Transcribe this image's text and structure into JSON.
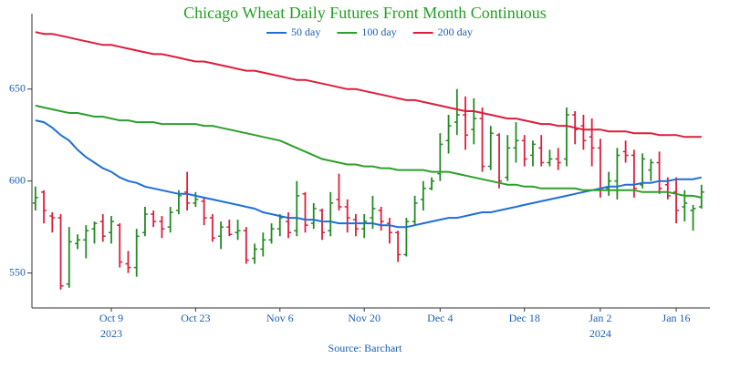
{
  "chart_data": {
    "type": "ohlc",
    "title": "Chicago Wheat Daily Futures Front Month Continuous",
    "title_color": "#22a022",
    "source": "Source: Barchart",
    "legend": "top",
    "up_color": "#228b22",
    "down_color": "#dc1e3c",
    "ylim": [
      531,
      691
    ],
    "yticks": [
      550,
      600,
      650
    ],
    "categories": [
      null,
      null,
      null,
      null,
      null,
      null,
      null,
      null,
      null,
      "Oct 9",
      null,
      null,
      null,
      null,
      null,
      null,
      null,
      null,
      null,
      "Oct 23",
      null,
      null,
      null,
      null,
      null,
      null,
      null,
      null,
      null,
      "Nov 6",
      null,
      null,
      null,
      null,
      null,
      null,
      null,
      null,
      null,
      "Nov 20",
      null,
      null,
      null,
      null,
      null,
      null,
      null,
      null,
      "Dec 4",
      null,
      null,
      null,
      null,
      null,
      null,
      null,
      null,
      null,
      "Dec 18",
      null,
      null,
      null,
      null,
      null,
      null,
      null,
      null,
      "Jan 2",
      null,
      null,
      null,
      null,
      null,
      null,
      null,
      null,
      "Jan 16",
      null,
      null,
      null
    ],
    "category_years": [
      null,
      null,
      null,
      null,
      null,
      null,
      null,
      null,
      null,
      "2023",
      null,
      null,
      null,
      null,
      null,
      null,
      null,
      null,
      null,
      null,
      null,
      null,
      null,
      null,
      null,
      null,
      null,
      null,
      null,
      null,
      null,
      null,
      null,
      null,
      null,
      null,
      null,
      null,
      null,
      null,
      null,
      null,
      null,
      null,
      null,
      null,
      null,
      null,
      null,
      null,
      null,
      null,
      null,
      null,
      null,
      null,
      null,
      null,
      null,
      null,
      null,
      null,
      null,
      null,
      null,
      null,
      null,
      "2024",
      null,
      null,
      null,
      null,
      null,
      null,
      null,
      null,
      null,
      null,
      null,
      null
    ],
    "open": [
      588,
      594,
      581,
      580,
      544,
      566,
      568,
      574,
      578,
      572,
      576,
      555,
      553,
      572,
      582,
      578,
      575,
      584,
      594,
      588,
      589,
      580,
      570,
      575,
      572,
      573,
      558,
      563,
      568,
      574,
      578,
      573,
      593,
      577,
      584,
      573,
      590,
      586,
      579,
      574,
      580,
      584,
      577,
      572,
      560,
      578,
      590,
      596,
      604,
      622,
      632,
      636,
      628,
      634,
      608,
      625,
      602,
      618,
      622,
      614,
      618,
      610,
      612,
      612,
      636,
      630,
      624,
      618,
      596,
      600,
      616,
      614,
      598,
      606,
      610,
      598,
      594,
      586,
      584,
      586
    ],
    "high": [
      597,
      595,
      583,
      582,
      575,
      571,
      576,
      578,
      582,
      581,
      577,
      562,
      574,
      586,
      584,
      581,
      586,
      595,
      605,
      594,
      591,
      582,
      578,
      579,
      579,
      575,
      566,
      572,
      577,
      582,
      583,
      600,
      594,
      588,
      585,
      594,
      604,
      590,
      582,
      582,
      592,
      586,
      580,
      573,
      580,
      592,
      600,
      602,
      626,
      636,
      650,
      646,
      645,
      640,
      630,
      626,
      625,
      632,
      625,
      622,
      625,
      617,
      618,
      640,
      638,
      636,
      634,
      623,
      605,
      618,
      622,
      617,
      615,
      612,
      616,
      602,
      602,
      595,
      587,
      598
    ],
    "low": [
      584,
      577,
      572,
      541,
      542,
      563,
      558,
      566,
      567,
      566,
      553,
      550,
      548,
      570,
      575,
      569,
      572,
      582,
      584,
      586,
      576,
      567,
      563,
      570,
      568,
      555,
      555,
      559,
      566,
      570,
      569,
      570,
      572,
      574,
      568,
      570,
      584,
      572,
      570,
      569,
      574,
      573,
      566,
      556,
      559,
      576,
      584,
      595,
      600,
      615,
      625,
      617,
      620,
      605,
      606,
      596,
      600,
      610,
      608,
      608,
      608,
      608,
      606,
      608,
      620,
      617,
      608,
      591,
      592,
      590,
      610,
      591,
      596,
      600,
      593,
      590,
      577,
      578,
      573,
      585
    ],
    "close": [
      591,
      584,
      580,
      543,
      567,
      568,
      573,
      577,
      570,
      578,
      556,
      553,
      570,
      582,
      578,
      574,
      583,
      592,
      588,
      590,
      580,
      569,
      575,
      571,
      573,
      557,
      563,
      568,
      574,
      580,
      572,
      592,
      576,
      585,
      572,
      588,
      586,
      580,
      574,
      578,
      585,
      578,
      572,
      560,
      578,
      588,
      596,
      600,
      620,
      630,
      636,
      625,
      634,
      608,
      626,
      600,
      618,
      622,
      612,
      620,
      610,
      612,
      610,
      636,
      628,
      622,
      618,
      596,
      600,
      614,
      614,
      596,
      612,
      610,
      596,
      592,
      584,
      588,
      585,
      594
    ],
    "series": [
      {
        "name": "50 day",
        "color": "#1f6fd6",
        "values": [
          633,
          632,
          629,
          625,
          622,
          617,
          613,
          610,
          607,
          605,
          602,
          600,
          599,
          597,
          596,
          595,
          594,
          593,
          593,
          592,
          591,
          590,
          589,
          588,
          587,
          586,
          585,
          583,
          582,
          581,
          580,
          580,
          579,
          579,
          578,
          578,
          577,
          577,
          577,
          577,
          577,
          576,
          576,
          575,
          575,
          576,
          577,
          578,
          579,
          580,
          580,
          581,
          582,
          583,
          583,
          584,
          585,
          586,
          587,
          588,
          589,
          590,
          591,
          592,
          593,
          594,
          595,
          596,
          597,
          597,
          598,
          598,
          599,
          599,
          600,
          600,
          601,
          601,
          601,
          602
        ]
      },
      {
        "name": "100 day",
        "color": "#2ca02c",
        "values": [
          641,
          640,
          639,
          638,
          637,
          637,
          636,
          635,
          635,
          634,
          633,
          633,
          632,
          632,
          632,
          631,
          631,
          631,
          631,
          631,
          630,
          630,
          629,
          628,
          627,
          626,
          625,
          624,
          623,
          622,
          620,
          618,
          616,
          614,
          612,
          611,
          610,
          609,
          609,
          608,
          608,
          607,
          607,
          606,
          606,
          606,
          606,
          605,
          605,
          605,
          604,
          603,
          602,
          601,
          600,
          599,
          598,
          598,
          597,
          597,
          596,
          596,
          596,
          596,
          596,
          595,
          595,
          595,
          595,
          595,
          595,
          595,
          594,
          594,
          594,
          594,
          593,
          592,
          592,
          591
        ]
      },
      {
        "name": "200 day",
        "color": "#dc1e3c",
        "values": [
          681,
          680,
          680,
          679,
          678,
          677,
          676,
          675,
          674,
          674,
          673,
          672,
          671,
          670,
          669,
          669,
          668,
          667,
          666,
          665,
          665,
          664,
          663,
          662,
          661,
          660,
          660,
          659,
          658,
          657,
          656,
          655,
          655,
          654,
          653,
          652,
          651,
          650,
          650,
          649,
          648,
          647,
          646,
          645,
          644,
          644,
          643,
          642,
          641,
          640,
          639,
          638,
          638,
          637,
          636,
          635,
          634,
          634,
          633,
          632,
          631,
          631,
          630,
          630,
          629,
          628,
          628,
          628,
          627,
          627,
          627,
          626,
          626,
          626,
          625,
          625,
          625,
          624,
          624,
          624
        ]
      }
    ]
  }
}
